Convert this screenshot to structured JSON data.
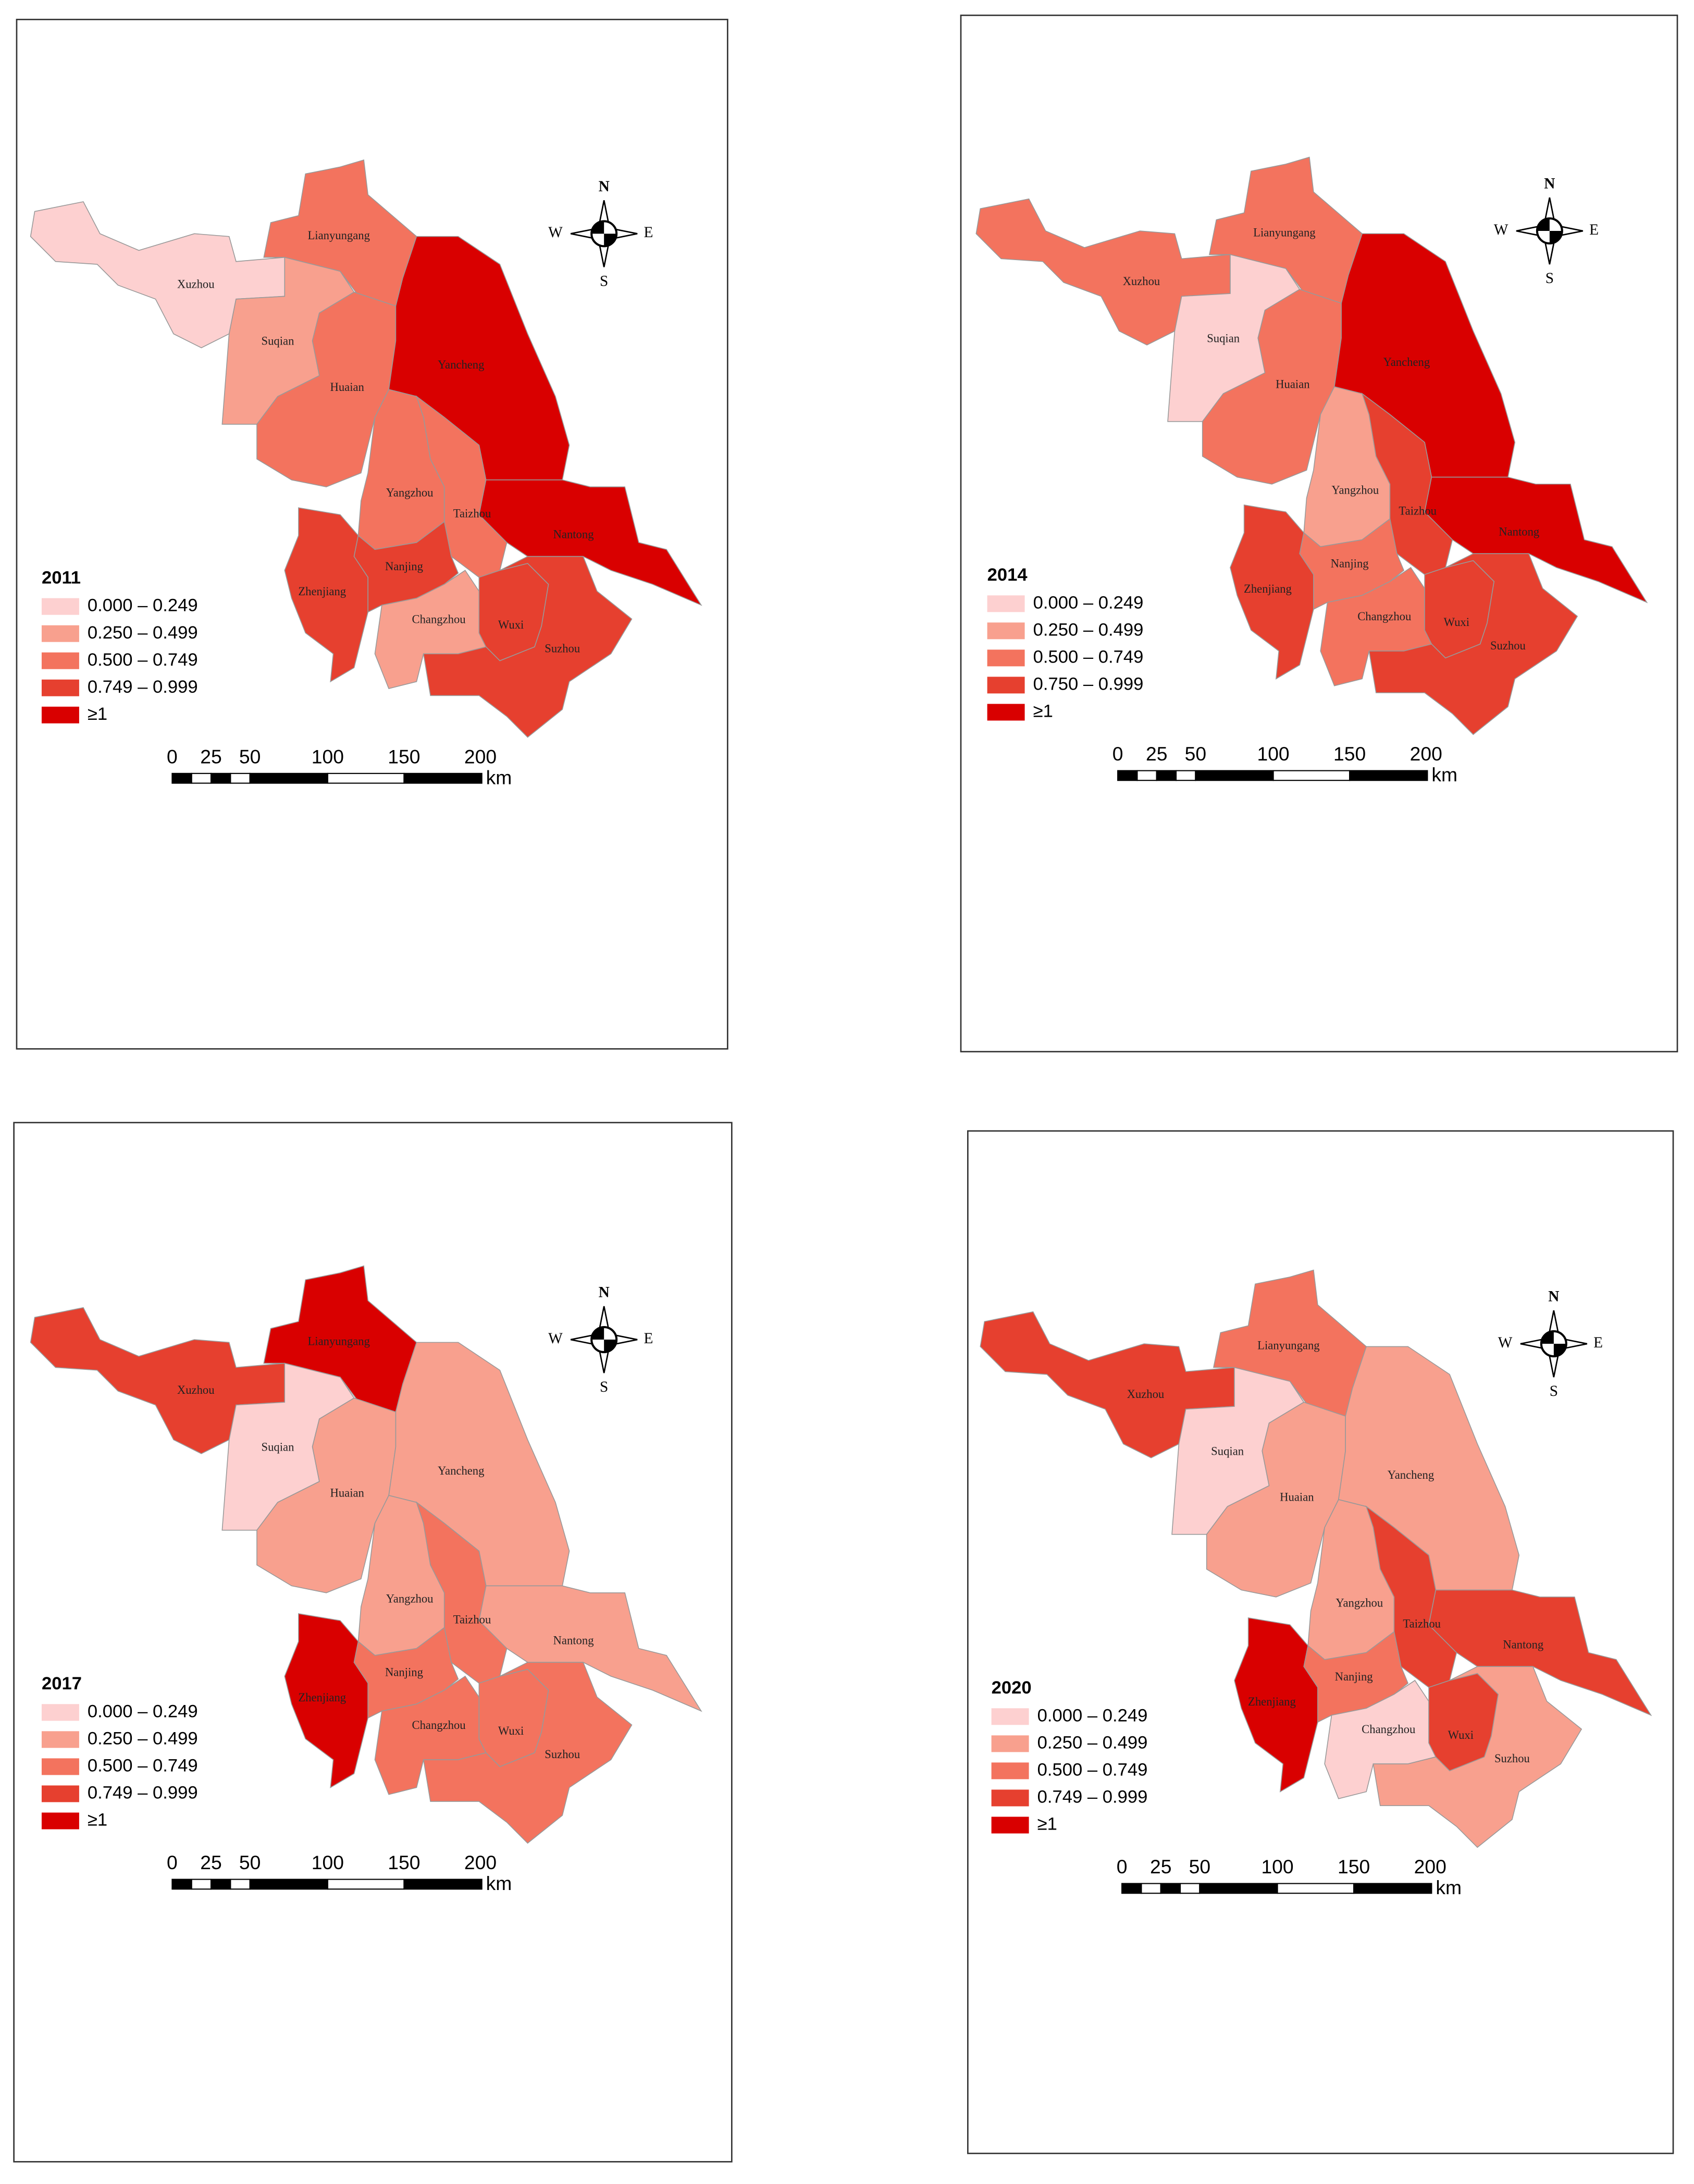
{
  "panels": [
    {
      "year": "2011",
      "legend": [
        {
          "label": "0.000 – 0.249",
          "color": "#fdd0d0"
        },
        {
          "label": "0.250 – 0.499",
          "color": "#f8a08e"
        },
        {
          "label": "0.500 – 0.749",
          "color": "#f3735e"
        },
        {
          "label": "0.749 – 0.999",
          "color": "#e6402f"
        },
        {
          "label": "≥1",
          "color": "#d90000"
        }
      ],
      "cities": [
        {
          "name": "Xuzhou",
          "color": "#fdd0d0"
        },
        {
          "name": "Lianyungang",
          "color": "#f3735e"
        },
        {
          "name": "Suqian",
          "color": "#f8a08e"
        },
        {
          "name": "Huaian",
          "color": "#f3735e"
        },
        {
          "name": "Yancheng",
          "color": "#d90000"
        },
        {
          "name": "Yangzhou",
          "color": "#f3735e"
        },
        {
          "name": "Taizhou",
          "color": "#f3735e"
        },
        {
          "name": "Nantong",
          "color": "#d90000"
        },
        {
          "name": "Nanjing",
          "color": "#e6402f"
        },
        {
          "name": "Zhenjiang",
          "color": "#e6402f"
        },
        {
          "name": "Changzhou",
          "color": "#f8a08e"
        },
        {
          "name": "Wuxi",
          "color": "#e6402f"
        },
        {
          "name": "Suzhou",
          "color": "#e6402f"
        }
      ],
      "compass": {
        "n": "N",
        "s": "S",
        "e": "E",
        "w": "W"
      },
      "scale": {
        "ticks": [
          0,
          25,
          50,
          100,
          150,
          200
        ],
        "unit": "km"
      }
    },
    {
      "year": "2014",
      "legend": [
        {
          "label": "0.000 – 0.249",
          "color": "#fdd0d0"
        },
        {
          "label": "0.250 – 0.499",
          "color": "#f8a08e"
        },
        {
          "label": "0.500 – 0.749",
          "color": "#f3735e"
        },
        {
          "label": "0.750 – 0.999",
          "color": "#e6402f"
        },
        {
          "label": "≥1",
          "color": "#d90000"
        }
      ],
      "cities": [
        {
          "name": "Xuzhou",
          "color": "#f3735e"
        },
        {
          "name": "Lianyungang",
          "color": "#f3735e"
        },
        {
          "name": "Suqian",
          "color": "#fdd0d0"
        },
        {
          "name": "Huaian",
          "color": "#f3735e"
        },
        {
          "name": "Yancheng",
          "color": "#d90000"
        },
        {
          "name": "Yangzhou",
          "color": "#f8a08e"
        },
        {
          "name": "Taizhou",
          "color": "#e6402f"
        },
        {
          "name": "Nantong",
          "color": "#d90000"
        },
        {
          "name": "Nanjing",
          "color": "#e6402f"
        },
        {
          "name": "Zhenjiang",
          "color": "#f3735e"
        },
        {
          "name": "Changzhou",
          "color": "#f3735e"
        },
        {
          "name": "Wuxi",
          "color": "#e6402f"
        },
        {
          "name": "Suzhou",
          "color": "#e6402f"
        }
      ],
      "compass": {
        "n": "N",
        "s": "S",
        "e": "E",
        "w": "W"
      },
      "scale": {
        "ticks": [
          0,
          25,
          50,
          100,
          150,
          200
        ],
        "unit": "km"
      }
    },
    {
      "year": "2017",
      "legend": [
        {
          "label": "0.000 – 0.249",
          "color": "#fdd0d0"
        },
        {
          "label": "0.250 – 0.499",
          "color": "#f8a08e"
        },
        {
          "label": "0.500 – 0.749",
          "color": "#f3735e"
        },
        {
          "label": "0.749 – 0.999",
          "color": "#e6402f"
        },
        {
          "label": "≥1",
          "color": "#d90000"
        }
      ],
      "cities": [
        {
          "name": "Xuzhou",
          "color": "#e6402f"
        },
        {
          "name": "Lianyungang",
          "color": "#d90000"
        },
        {
          "name": "Suqian",
          "color": "#fdd0d0"
        },
        {
          "name": "Huaian",
          "color": "#f8a08e"
        },
        {
          "name": "Yancheng",
          "color": "#f8a08e"
        },
        {
          "name": "Yangzhou",
          "color": "#f8a08e"
        },
        {
          "name": "Taizhou",
          "color": "#f3735e"
        },
        {
          "name": "Nantong",
          "color": "#f8a08e"
        },
        {
          "name": "Nanjing",
          "color": "#d90000"
        },
        {
          "name": "Zhenjiang",
          "color": "#f3735e"
        },
        {
          "name": "Changzhou",
          "color": "#f3735e"
        },
        {
          "name": "Wuxi",
          "color": "#f3735e"
        },
        {
          "name": "Suzhou",
          "color": "#f3735e"
        }
      ],
      "compass": {
        "n": "N",
        "s": "S",
        "e": "E",
        "w": "W"
      },
      "scale": {
        "ticks": [
          0,
          25,
          50,
          100,
          150,
          200
        ],
        "unit": "km"
      }
    },
    {
      "year": "2020",
      "legend": [
        {
          "label": "0.000 – 0.249",
          "color": "#fdd0d0"
        },
        {
          "label": "0.250 – 0.499",
          "color": "#f8a08e"
        },
        {
          "label": "0.500 – 0.749",
          "color": "#f3735e"
        },
        {
          "label": "0.749 – 0.999",
          "color": "#e6402f"
        },
        {
          "label": "≥1",
          "color": "#d90000"
        }
      ],
      "cities": [
        {
          "name": "Xuzhou",
          "color": "#e6402f"
        },
        {
          "name": "Lianyungang",
          "color": "#f3735e"
        },
        {
          "name": "Suqian",
          "color": "#fdd0d0"
        },
        {
          "name": "Huaian",
          "color": "#f8a08e"
        },
        {
          "name": "Yancheng",
          "color": "#f8a08e"
        },
        {
          "name": "Yangzhou",
          "color": "#f8a08e"
        },
        {
          "name": "Taizhou",
          "color": "#e6402f"
        },
        {
          "name": "Nantong",
          "color": "#e6402f"
        },
        {
          "name": "Nanjing",
          "color": "#d90000"
        },
        {
          "name": "Zhenjiang",
          "color": "#f3735e"
        },
        {
          "name": "Changzhou",
          "color": "#fdd0d0"
        },
        {
          "name": "Wuxi",
          "color": "#e6402f"
        },
        {
          "name": "Suzhou",
          "color": "#f8a08e"
        }
      ],
      "compass": {
        "n": "N",
        "s": "S",
        "e": "E",
        "w": "W"
      },
      "scale": {
        "ticks": [
          0,
          25,
          50,
          100,
          150,
          200
        ],
        "unit": "km"
      }
    }
  ]
}
